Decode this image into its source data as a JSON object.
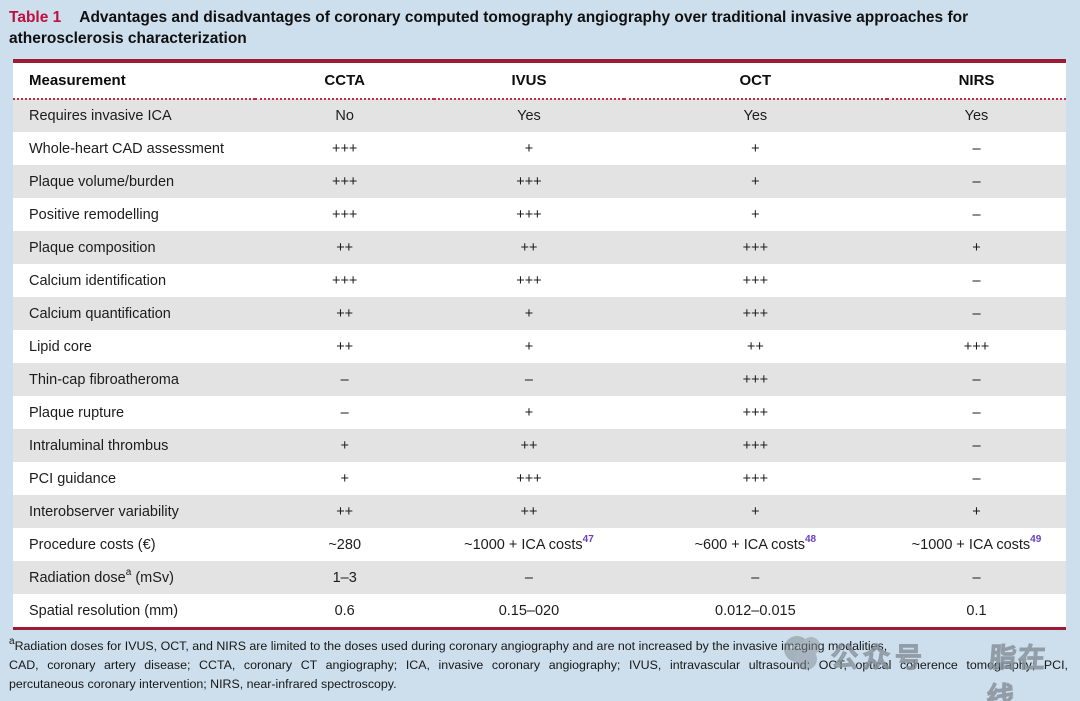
{
  "title": {
    "label": "Table 1",
    "text": "Advantages and disadvantages of coronary computed tomography angiography over traditional invasive approaches for atherosclerosis characterization"
  },
  "table": {
    "columns": [
      "Measurement",
      "CCTA",
      "IVUS",
      "OCT",
      "NIRS"
    ],
    "rows": [
      {
        "measurement": "Requires invasive ICA",
        "values": [
          "No",
          "Yes",
          "Yes",
          "Yes"
        ]
      },
      {
        "measurement": "Whole-heart CAD assessment",
        "values": [
          "+++",
          "+",
          "+",
          "–"
        ]
      },
      {
        "measurement": "Plaque volume/burden",
        "values": [
          "+++",
          "+++",
          "+",
          "–"
        ]
      },
      {
        "measurement": "Positive remodelling",
        "values": [
          "+++",
          "+++",
          "+",
          "–"
        ]
      },
      {
        "measurement": "Plaque composition",
        "values": [
          "++",
          "++",
          "+++",
          "+"
        ]
      },
      {
        "measurement": "Calcium identification",
        "values": [
          "+++",
          "+++",
          "+++",
          "–"
        ]
      },
      {
        "measurement": "Calcium quantification",
        "values": [
          "++",
          "+",
          "+++",
          "–"
        ]
      },
      {
        "measurement": "Lipid core",
        "values": [
          "++",
          "+",
          "++",
          "+++"
        ]
      },
      {
        "measurement": "Thin-cap fibroatheroma",
        "values": [
          "–",
          "–",
          "+++",
          "–"
        ]
      },
      {
        "measurement": "Plaque rupture",
        "values": [
          "–",
          "+",
          "+++",
          "–"
        ]
      },
      {
        "measurement": "Intraluminal thrombus",
        "values": [
          "+",
          "++",
          "+++",
          "–"
        ]
      },
      {
        "measurement": "PCI guidance",
        "values": [
          "+",
          "+++",
          "+++",
          "–"
        ]
      },
      {
        "measurement": "Interobserver variability",
        "values": [
          "++",
          "++",
          "+",
          "+"
        ]
      },
      {
        "measurement": "Procedure costs (€)",
        "values": [
          "~280",
          "~1000 + ICA costs^47^",
          "~600 + ICA costs^48^",
          "~1000 + ICA costs^49^"
        ]
      },
      {
        "measurement": "Radiation dose^a^ (mSv)",
        "values": [
          "1–3",
          "–",
          "–",
          "–"
        ]
      },
      {
        "measurement": "Spatial resolution (mm)",
        "values": [
          "0.6",
          "0.15–020",
          "0.012–0.015",
          "0.1"
        ]
      }
    ]
  },
  "footnote": {
    "lines": [
      "^a^Radiation doses for IVUS, OCT, and NIRS are limited to the doses used during coronary angiography and are not increased by the invasive imaging modalities,",
      "CAD, coronary artery disease; CCTA, coronary CT angiography; ICA, invasive coronary angiography; IVUS, intravascular ultrasound; OCT, optical coherence tomography; PCI,",
      "percutaneous coronary intervention; NIRS, near-infrared spectroscopy."
    ]
  },
  "watermark": {
    "label_left": "公众号",
    "label_right": "脂在线"
  },
  "colors": {
    "page_background": "#cddfec",
    "rule_maroon": "#9d1c34",
    "title_red": "#c10f3d",
    "dotted_red": "#c22a4a",
    "row_shade_gray": "#e3e3e3",
    "citation_purple": "#6a3fc0"
  }
}
